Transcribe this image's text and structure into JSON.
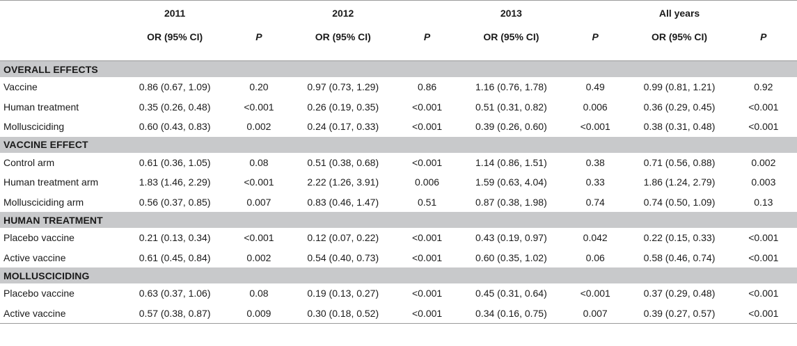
{
  "header": {
    "years": [
      "2011",
      "2012",
      "2013",
      "All years"
    ],
    "or_label": "OR (95% CI)",
    "p_label": "P"
  },
  "sections": [
    {
      "title": "OVERALL EFFECTS",
      "rows": [
        {
          "label": "Vaccine",
          "cells": [
            "0.86 (0.67, 1.09)",
            "0.20",
            "0.97 (0.73, 1.29)",
            "0.86",
            "1.16 (0.76, 1.78)",
            "0.49",
            "0.99 (0.81, 1.21)",
            "0.92"
          ]
        },
        {
          "label": "Human treatment",
          "cells": [
            "0.35 (0.26, 0.48)",
            "<0.001",
            "0.26 (0.19, 0.35)",
            "<0.001",
            "0.51 (0.31, 0.82)",
            "0.006",
            "0.36 (0.29, 0.45)",
            "<0.001"
          ]
        },
        {
          "label": "Mollusciciding",
          "cells": [
            "0.60 (0.43, 0.83)",
            "0.002",
            "0.24 (0.17, 0.33)",
            "<0.001",
            "0.39 (0.26, 0.60)",
            "<0.001",
            "0.38 (0.31, 0.48)",
            "<0.001"
          ]
        }
      ]
    },
    {
      "title": "VACCINE EFFECT",
      "rows": [
        {
          "label": "Control arm",
          "cells": [
            "0.61 (0.36, 1.05)",
            "0.08",
            "0.51 (0.38, 0.68)",
            "<0.001",
            "1.14 (0.86, 1.51)",
            "0.38",
            "0.71 (0.56, 0.88)",
            "0.002"
          ]
        },
        {
          "label": "Human treatment arm",
          "cells": [
            "1.83 (1.46, 2.29)",
            "<0.001",
            "2.22 (1.26, 3.91)",
            "0.006",
            "1.59 (0.63, 4.04)",
            "0.33",
            "1.86 (1.24, 2.79)",
            "0.003"
          ]
        },
        {
          "label": "Mollusciciding arm",
          "cells": [
            "0.56 (0.37, 0.85)",
            "0.007",
            "0.83 (0.46, 1.47)",
            "0.51",
            "0.87 (0.38, 1.98)",
            "0.74",
            "0.74 (0.50, 1.09)",
            "0.13"
          ]
        }
      ]
    },
    {
      "title": "HUMAN TREATMENT",
      "rows": [
        {
          "label": "Placebo vaccine",
          "cells": [
            "0.21 (0.13, 0.34)",
            "<0.001",
            "0.12 (0.07, 0.22)",
            "<0.001",
            "0.43 (0.19, 0.97)",
            "0.042",
            "0.22 (0.15, 0.33)",
            "<0.001"
          ]
        },
        {
          "label": "Active vaccine",
          "cells": [
            "0.61 (0.45, 0.84)",
            "0.002",
            "0.54 (0.40, 0.73)",
            "<0.001",
            "0.60 (0.35, 1.02)",
            "0.06",
            "0.58 (0.46, 0.74)",
            "<0.001"
          ]
        }
      ]
    },
    {
      "title": "MOLLUSCICIDING",
      "rows": [
        {
          "label": "Placebo vaccine",
          "cells": [
            "0.63 (0.37, 1.06)",
            "0.08",
            "0.19 (0.13, 0.27)",
            "<0.001",
            "0.45 (0.31, 0.64)",
            "<0.001",
            "0.37 (0.29, 0.48)",
            "<0.001"
          ]
        },
        {
          "label": "Active vaccine",
          "cells": [
            "0.57 (0.38, 0.87)",
            "0.009",
            "0.30 (0.18, 0.52)",
            "<0.001",
            "0.34 (0.16, 0.75)",
            "0.007",
            "0.39 (0.27, 0.57)",
            "<0.001"
          ]
        }
      ]
    }
  ]
}
